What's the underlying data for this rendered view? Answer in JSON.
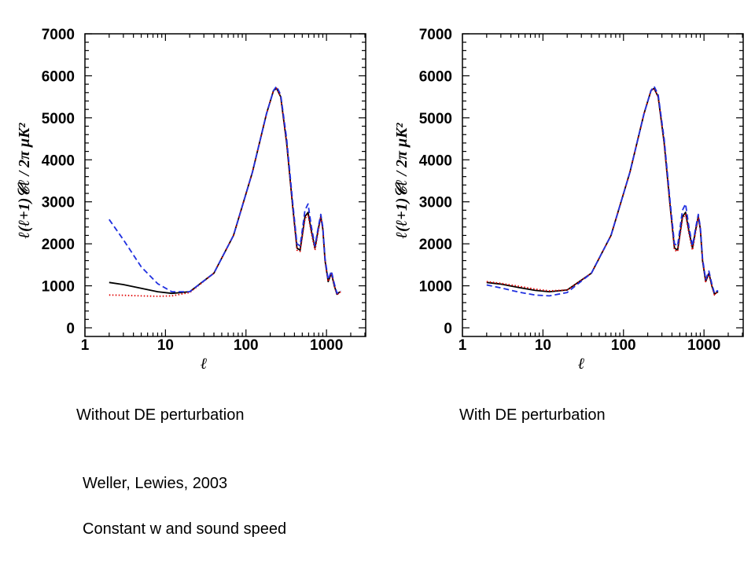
{
  "chart_data": [
    {
      "type": "line",
      "title": "",
      "caption": "Without DE perturbation",
      "xlabel": "ℓ",
      "ylabel": "ℓ(ℓ+1)𝒞ℓ / 2π  μK²",
      "xscale": "log",
      "xlim": [
        1,
        3000
      ],
      "ylim": [
        0,
        7000
      ],
      "xticks": [
        "1",
        "10",
        "100",
        "1000"
      ],
      "yticks": [
        "0",
        "1000",
        "2000",
        "3000",
        "4000",
        "5000",
        "6000",
        "7000"
      ],
      "grid": false,
      "series": [
        {
          "style": "solid",
          "color": "#000000",
          "points": [
            [
              2,
              1080
            ],
            [
              3,
              1030
            ],
            [
              5,
              940
            ],
            [
              8,
              860
            ],
            [
              12,
              820
            ],
            [
              20,
              860
            ],
            [
              40,
              1300
            ],
            [
              70,
              2200
            ],
            [
              120,
              3700
            ],
            [
              180,
              5100
            ],
            [
              220,
              5650
            ],
            [
              240,
              5700
            ],
            [
              270,
              5500
            ],
            [
              320,
              4400
            ],
            [
              380,
              2900
            ],
            [
              430,
              1900
            ],
            [
              470,
              1850
            ],
            [
              540,
              2650
            ],
            [
              590,
              2750
            ],
            [
              650,
              2300
            ],
            [
              720,
              1900
            ],
            [
              790,
              2350
            ],
            [
              850,
              2650
            ],
            [
              900,
              2350
            ],
            [
              960,
              1600
            ],
            [
              1050,
              1100
            ],
            [
              1150,
              1300
            ],
            [
              1250,
              1000
            ],
            [
              1350,
              800
            ],
            [
              1450,
              850
            ],
            [
              1500,
              850
            ]
          ]
        },
        {
          "style": "dotted",
          "color": "#e00000",
          "points": [
            [
              2,
              780
            ],
            [
              3,
              775
            ],
            [
              5,
              760
            ],
            [
              8,
              750
            ],
            [
              12,
              760
            ],
            [
              20,
              840
            ],
            [
              40,
              1300
            ],
            [
              70,
              2200
            ],
            [
              120,
              3700
            ],
            [
              180,
              5100
            ],
            [
              220,
              5650
            ],
            [
              240,
              5700
            ],
            [
              270,
              5500
            ],
            [
              320,
              4400
            ],
            [
              380,
              2900
            ],
            [
              430,
              1850
            ],
            [
              470,
              1820
            ],
            [
              540,
              2600
            ],
            [
              590,
              2700
            ],
            [
              650,
              2250
            ],
            [
              720,
              1850
            ],
            [
              790,
              2300
            ],
            [
              850,
              2650
            ],
            [
              900,
              2350
            ],
            [
              960,
              1600
            ],
            [
              1050,
              1100
            ],
            [
              1150,
              1300
            ],
            [
              1250,
              1000
            ],
            [
              1350,
              780
            ],
            [
              1450,
              850
            ],
            [
              1500,
              850
            ]
          ]
        },
        {
          "style": "dashed",
          "color": "#2030e0",
          "points": [
            [
              2,
              2580
            ],
            [
              3,
              2100
            ],
            [
              5,
              1450
            ],
            [
              8,
              1050
            ],
            [
              12,
              860
            ],
            [
              20,
              860
            ],
            [
              40,
              1300
            ],
            [
              70,
              2200
            ],
            [
              120,
              3700
            ],
            [
              180,
              5100
            ],
            [
              220,
              5650
            ],
            [
              240,
              5750
            ],
            [
              270,
              5550
            ],
            [
              320,
              4500
            ],
            [
              380,
              3000
            ],
            [
              430,
              2000
            ],
            [
              470,
              1950
            ],
            [
              540,
              2800
            ],
            [
              590,
              2950
            ],
            [
              650,
              2400
            ],
            [
              720,
              1950
            ],
            [
              790,
              2400
            ],
            [
              850,
              2700
            ],
            [
              900,
              2400
            ],
            [
              960,
              1650
            ],
            [
              1050,
              1150
            ],
            [
              1150,
              1350
            ],
            [
              1250,
              1050
            ],
            [
              1350,
              820
            ],
            [
              1450,
              880
            ],
            [
              1500,
              880
            ]
          ]
        }
      ]
    },
    {
      "type": "line",
      "title": "",
      "caption": "With DE perturbation",
      "xlabel": "ℓ",
      "ylabel": "ℓ(ℓ+1)𝒞ℓ / 2π  μK²",
      "xscale": "log",
      "xlim": [
        1,
        3000
      ],
      "ylim": [
        0,
        7000
      ],
      "xticks": [
        "1",
        "10",
        "100",
        "1000"
      ],
      "yticks": [
        "0",
        "1000",
        "2000",
        "3000",
        "4000",
        "5000",
        "6000",
        "7000"
      ],
      "grid": false,
      "series": [
        {
          "style": "solid",
          "color": "#000000",
          "points": [
            [
              2,
              1080
            ],
            [
              3,
              1040
            ],
            [
              5,
              960
            ],
            [
              8,
              890
            ],
            [
              12,
              860
            ],
            [
              20,
              900
            ],
            [
              40,
              1300
            ],
            [
              70,
              2200
            ],
            [
              120,
              3700
            ],
            [
              180,
              5100
            ],
            [
              220,
              5650
            ],
            [
              240,
              5700
            ],
            [
              270,
              5500
            ],
            [
              320,
              4400
            ],
            [
              380,
              2900
            ],
            [
              430,
              1900
            ],
            [
              470,
              1850
            ],
            [
              540,
              2650
            ],
            [
              590,
              2750
            ],
            [
              650,
              2300
            ],
            [
              720,
              1900
            ],
            [
              790,
              2350
            ],
            [
              850,
              2650
            ],
            [
              900,
              2350
            ],
            [
              960,
              1600
            ],
            [
              1050,
              1100
            ],
            [
              1150,
              1300
            ],
            [
              1250,
              1000
            ],
            [
              1350,
              800
            ],
            [
              1450,
              850
            ],
            [
              1500,
              850
            ]
          ]
        },
        {
          "style": "dotted",
          "color": "#e00000",
          "points": [
            [
              2,
              1100
            ],
            [
              3,
              1060
            ],
            [
              5,
              990
            ],
            [
              8,
              920
            ],
            [
              12,
              880
            ],
            [
              20,
              900
            ],
            [
              40,
              1300
            ],
            [
              70,
              2200
            ],
            [
              120,
              3700
            ],
            [
              180,
              5100
            ],
            [
              220,
              5650
            ],
            [
              240,
              5700
            ],
            [
              270,
              5500
            ],
            [
              320,
              4400
            ],
            [
              380,
              2900
            ],
            [
              430,
              1850
            ],
            [
              470,
              1820
            ],
            [
              540,
              2600
            ],
            [
              590,
              2700
            ],
            [
              650,
              2250
            ],
            [
              720,
              1850
            ],
            [
              790,
              2300
            ],
            [
              850,
              2650
            ],
            [
              900,
              2350
            ],
            [
              960,
              1600
            ],
            [
              1050,
              1100
            ],
            [
              1150,
              1300
            ],
            [
              1250,
              1000
            ],
            [
              1350,
              780
            ],
            [
              1450,
              850
            ],
            [
              1500,
              850
            ]
          ]
        },
        {
          "style": "dashed",
          "color": "#2030e0",
          "points": [
            [
              2,
              1020
            ],
            [
              3,
              950
            ],
            [
              5,
              850
            ],
            [
              8,
              780
            ],
            [
              12,
              760
            ],
            [
              20,
              840
            ],
            [
              40,
              1300
            ],
            [
              70,
              2200
            ],
            [
              120,
              3700
            ],
            [
              180,
              5100
            ],
            [
              220,
              5650
            ],
            [
              240,
              5750
            ],
            [
              270,
              5550
            ],
            [
              320,
              4500
            ],
            [
              380,
              3000
            ],
            [
              430,
              2000
            ],
            [
              470,
              1950
            ],
            [
              540,
              2800
            ],
            [
              590,
              2950
            ],
            [
              650,
              2400
            ],
            [
              720,
              1950
            ],
            [
              790,
              2400
            ],
            [
              850,
              2700
            ],
            [
              900,
              2400
            ],
            [
              960,
              1650
            ],
            [
              1050,
              1150
            ],
            [
              1150,
              1350
            ],
            [
              1250,
              1050
            ],
            [
              1350,
              820
            ],
            [
              1450,
              880
            ],
            [
              1500,
              880
            ]
          ]
        }
      ]
    }
  ],
  "captions": {
    "left": "Without DE perturbation",
    "right": "With DE perturbation",
    "citation": "Weller, Lewies, 2003",
    "note": "Constant w and sound speed"
  }
}
